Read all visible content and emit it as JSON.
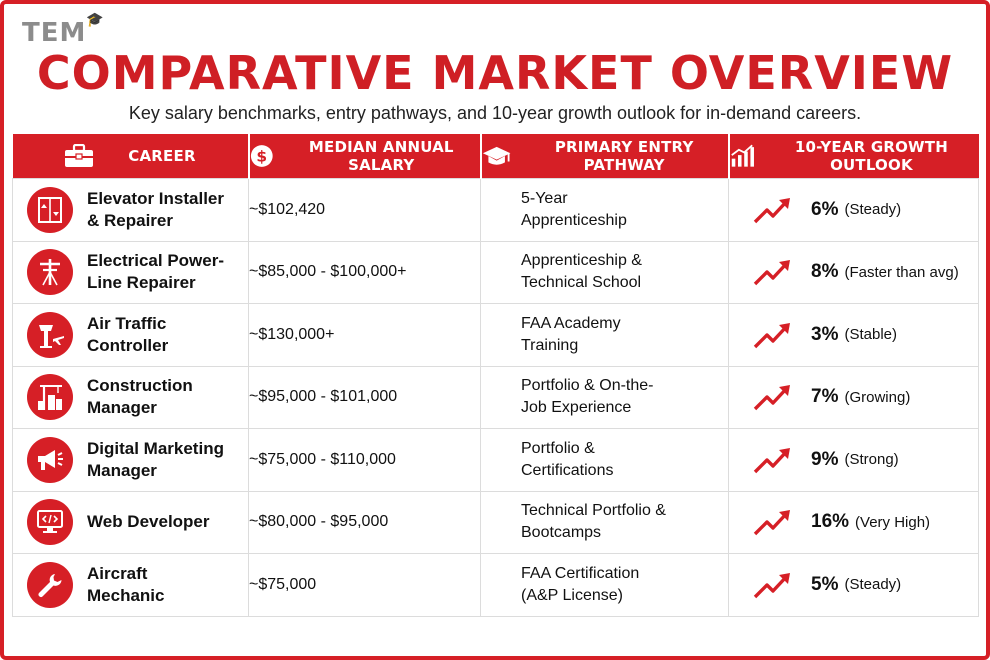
{
  "brand": {
    "logo_text": "TEM"
  },
  "header": {
    "title": "COMPARATIVE MARKET OVERVIEW",
    "subtitle": "Key salary benchmarks, entry pathways, and 10-year growth outlook for in-demand careers."
  },
  "columns": [
    {
      "label": "CAREER",
      "icon": "briefcase-icon"
    },
    {
      "label": "MEDIAN ANNUAL SALARY",
      "icon": "dollar-icon"
    },
    {
      "label": "PRIMARY ENTRY PATHWAY",
      "icon": "graduation-cap-icon"
    },
    {
      "label": "10-YEAR GROWTH OUTLOOK",
      "icon": "growth-chart-icon"
    }
  ],
  "rows": [
    {
      "career": "Elevator Installer & Repairer",
      "icon": "elevator-icon",
      "salary": "~$102,420",
      "pathway": "5-Year Apprenticeship",
      "growth_pct": "6%",
      "growth_note": "(Steady)"
    },
    {
      "career": "Electrical Power-Line Repairer",
      "icon": "power-line-icon",
      "salary": "~$85,000 - $100,000+",
      "pathway": "Apprenticeship & Technical School",
      "growth_pct": "8%",
      "growth_note": "(Faster than avg)"
    },
    {
      "career": "Air Traffic Controller",
      "icon": "control-tower-icon",
      "salary": "~$130,000+",
      "pathway": "FAA Academy Training",
      "growth_pct": "3%",
      "growth_note": "(Stable)"
    },
    {
      "career": "Construction Manager",
      "icon": "construction-icon",
      "salary": "~$95,000 - $101,000",
      "pathway": "Portfolio & On-the-Job Experience",
      "growth_pct": "7%",
      "growth_note": "(Growing)"
    },
    {
      "career": "Digital Marketing Manager",
      "icon": "megaphone-icon",
      "salary": "~$75,000 - $110,000",
      "pathway": "Portfolio & Certifications",
      "growth_pct": "9%",
      "growth_note": "(Strong)"
    },
    {
      "career": "Web Developer",
      "icon": "code-monitor-icon",
      "salary": "~$80,000 - $95,000",
      "pathway": "Technical Portfolio & Bootcamps",
      "growth_pct": "16%",
      "growth_note": "(Very High)"
    },
    {
      "career": "Aircraft Mechanic",
      "icon": "wrench-icon",
      "salary": "~$75,000",
      "pathway": "FAA Certification (A&P License)",
      "growth_pct": "5%",
      "growth_note": "(Steady)"
    }
  ],
  "colors": {
    "accent": "#d61f26",
    "border": "#dcdcdc",
    "text": "#111111"
  }
}
